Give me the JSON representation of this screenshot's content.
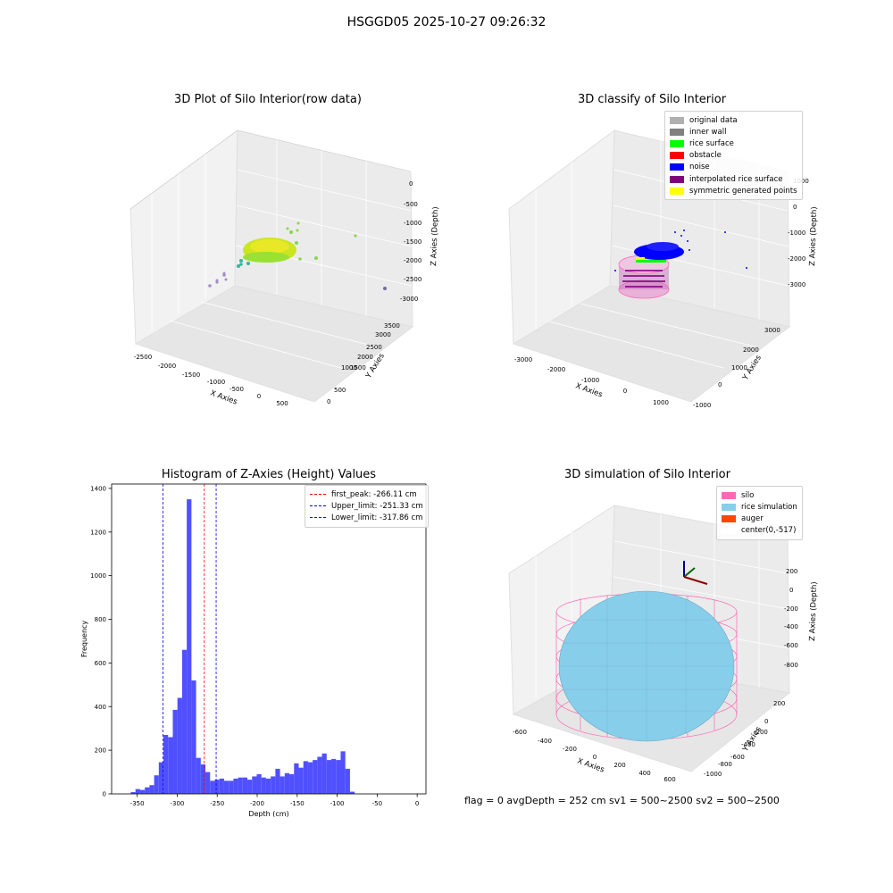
{
  "suptitle": "HSGGD05 2025-10-27 09:26:32",
  "footer": "flag = 0     avgDepth = 252 cm  sv1 = 500~2500  sv2 = 500~2500",
  "plots": {
    "raw": {
      "title": "3D Plot of Silo Interior(row data)",
      "xlabel": "X Axies",
      "ylabel": "Y Axies",
      "zlabel": "Z Axies (Depth)",
      "xticks": [
        "-2500",
        "-2000",
        "-1500",
        "-1000",
        "-500",
        "0",
        "500"
      ],
      "yticks": [
        "0",
        "500",
        "1000",
        "1500",
        "2000",
        "2500",
        "3000",
        "3500"
      ],
      "zticks": [
        "0",
        "-500",
        "-1000",
        "-1500",
        "-2000",
        "-2500",
        "-3000"
      ]
    },
    "classify": {
      "title": "3D classify of Silo Interior",
      "xlabel": "X Axies",
      "ylabel": "Y Axies",
      "zlabel": "Z Axies (Depth)",
      "xticks": [
        "-3000",
        "-2000",
        "-1000",
        "0",
        "1000"
      ],
      "yticks": [
        "-1000",
        "0",
        "1000",
        "2000",
        "3000"
      ],
      "zticks": [
        "1000",
        "0",
        "-1000",
        "-2000",
        "-3000"
      ],
      "legend": [
        {
          "label": "original data",
          "color": "#b0b0b0"
        },
        {
          "label": "inner wall",
          "color": "#808080"
        },
        {
          "label": "rice surface",
          "color": "#00ff00"
        },
        {
          "label": "obstacle",
          "color": "#ff0000"
        },
        {
          "label": "noise",
          "color": "#0000ff"
        },
        {
          "label": "interpolated rice surface",
          "color": "#800080"
        },
        {
          "label": "symmetric generated points",
          "color": "#ffff00"
        }
      ]
    },
    "simulation": {
      "title": "3D simulation of Silo Interior",
      "xlabel": "X Axies",
      "ylabel": "Y Axies",
      "zlabel": "Z Axies (Depth)",
      "xticks": [
        "-600",
        "-400",
        "-200",
        "0",
        "200",
        "400",
        "600"
      ],
      "yticks": [
        "200",
        "0",
        "-200",
        "-400",
        "-600",
        "-800",
        "-1000"
      ],
      "zticks": [
        "200",
        "0",
        "-200",
        "-400",
        "-600",
        "-800"
      ],
      "legend": [
        {
          "label": "silo",
          "color": "#ff69b4"
        },
        {
          "label": "rice simulation",
          "color": "#87ceeb"
        },
        {
          "label": "auger",
          "color": "#ff4500"
        },
        {
          "label": "center(0,-517)",
          "color": "#ffffff"
        }
      ]
    }
  },
  "chart_data": {
    "type": "bar",
    "title": "Histogram of Z-Axies (Height) Values",
    "xlabel": "Depth (cm)",
    "ylabel": "Frequency",
    "xlim": [
      -382,
      11
    ],
    "ylim": [
      0,
      1420
    ],
    "xticks": [
      -350,
      -300,
      -250,
      -200,
      -150,
      -100,
      -50,
      0
    ],
    "yticks": [
      0,
      200,
      400,
      600,
      800,
      1000,
      1200,
      1400
    ],
    "bar_color": "#5050ff",
    "bin_start": -358,
    "bin_width": 5.83,
    "values": [
      8,
      22,
      18,
      30,
      40,
      85,
      145,
      270,
      260,
      385,
      440,
      660,
      1350,
      520,
      165,
      135,
      100,
      60,
      65,
      70,
      60,
      60,
      70,
      75,
      75,
      65,
      80,
      90,
      75,
      70,
      80,
      115,
      80,
      95,
      90,
      140,
      120,
      150,
      145,
      155,
      170,
      185,
      155,
      160,
      155,
      195,
      115,
      10
    ],
    "lines": [
      {
        "label": "first_peak: -266.11 cm",
        "x": -266.11,
        "color": "#ff0000"
      },
      {
        "label": "Upper_limit: -251.33 cm",
        "x": -251.33,
        "color": "#0000ff"
      },
      {
        "label": "Lower_limit: -317.86 cm",
        "x": -317.86,
        "color": "#0000ff"
      }
    ],
    "legend_position": "top-right"
  }
}
